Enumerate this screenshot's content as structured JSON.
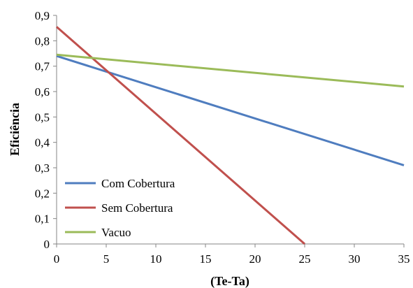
{
  "chart_data": {
    "type": "line",
    "title": "",
    "xlabel": "(Te-Ta)",
    "ylabel": "Eficiência",
    "xlim": [
      0,
      35
    ],
    "ylim": [
      0,
      0.9
    ],
    "xticks": [
      "0",
      "5",
      "10",
      "15",
      "20",
      "25",
      "30",
      "35"
    ],
    "yticks": [
      "0",
      "0,1",
      "0,2",
      "0,3",
      "0,4",
      "0,5",
      "0,6",
      "0,7",
      "0,8",
      "0,9"
    ],
    "grid": false,
    "legend_position": "bottom-left",
    "series": [
      {
        "name": "Com Cobertura",
        "color": "#4f7dbf",
        "x": [
          0,
          35
        ],
        "y": [
          0.74,
          0.31
        ]
      },
      {
        "name": "Sem Cobertura",
        "color": "#c0504d",
        "x": [
          0,
          25
        ],
        "y": [
          0.855,
          0.0
        ]
      },
      {
        "name": "Vacuo",
        "color": "#9bbb59",
        "x": [
          0,
          35
        ],
        "y": [
          0.745,
          0.62
        ]
      }
    ]
  }
}
